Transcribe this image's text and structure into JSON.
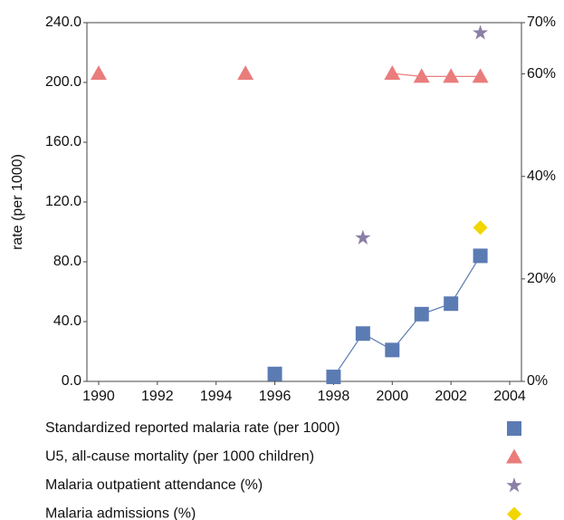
{
  "chart_data": {
    "type": "line",
    "ylabel": "rate (per 1000)",
    "x": [
      1990,
      1991,
      1992,
      1993,
      1994,
      1995,
      1996,
      1997,
      1998,
      1999,
      2000,
      2001,
      2002,
      2003
    ],
    "xlim": [
      1989.6,
      2004.4
    ],
    "xticks": [
      1990,
      1992,
      1994,
      1996,
      1998,
      2000,
      2002,
      2004
    ],
    "ylim": [
      0,
      240
    ],
    "yticks": [
      {
        "value": 0,
        "label": "0.0"
      },
      {
        "value": 40,
        "label": "40.0"
      },
      {
        "value": 80,
        "label": "80.0"
      },
      {
        "value": 120,
        "label": "120.0"
      },
      {
        "value": 160,
        "label": "160.0"
      },
      {
        "value": 200,
        "label": "200.0"
      },
      {
        "value": 240,
        "label": "240.0"
      }
    ],
    "y2lim": [
      0,
      70
    ],
    "y2ticks": [
      {
        "value": 0,
        "label": "0%"
      },
      {
        "value": 20,
        "label": "20%"
      },
      {
        "value": 40,
        "label": "40%"
      },
      {
        "value": 60,
        "label": "60%"
      },
      {
        "value": 70,
        "label": "70%"
      }
    ],
    "series": [
      {
        "name": "Standardized reported malaria rate (per 1000)",
        "color": "#5b7bb3",
        "marker": "square",
        "line": true,
        "values": [
          null,
          null,
          null,
          null,
          null,
          null,
          5,
          null,
          3,
          32,
          21,
          45,
          52,
          84
        ]
      },
      {
        "name": "U5, all-cause mortality (per 1000 children)",
        "color": "#ea7c7c",
        "marker": "triangle",
        "line": true,
        "values": [
          206,
          null,
          null,
          null,
          null,
          206,
          null,
          null,
          null,
          null,
          206,
          204,
          204,
          204
        ]
      },
      {
        "name": "Malaria outpatient attendance (%)",
        "color": "#8c7fa6",
        "marker": "star",
        "line": false,
        "axis": "y2",
        "values": [
          null,
          null,
          null,
          null,
          null,
          null,
          null,
          null,
          null,
          28,
          null,
          null,
          null,
          68
        ]
      },
      {
        "name": "Malaria admissions (%)",
        "color": "#f2d600",
        "marker": "diamond",
        "line": false,
        "axis": "y2",
        "values": [
          null,
          null,
          null,
          null,
          null,
          null,
          null,
          null,
          null,
          null,
          null,
          null,
          null,
          30
        ]
      }
    ]
  }
}
